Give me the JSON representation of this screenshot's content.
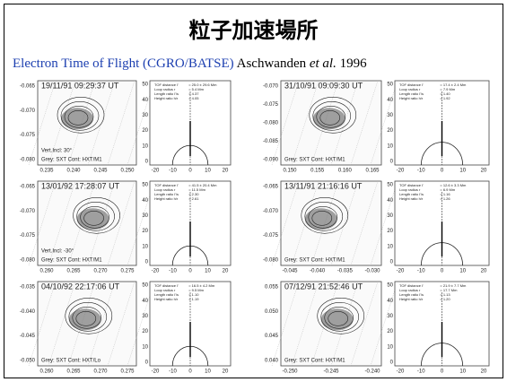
{
  "title": "粒子加速場所",
  "subtitle": {
    "source": "Electron Time of Flight (CGRO/BATSE)",
    "author": "Aschwanden",
    "etal": "et al.",
    "year": "1996"
  },
  "profile_axis": {
    "yticks": [
      "50",
      "40",
      "30",
      "20",
      "10",
      "0"
    ],
    "xticks": [
      "-20",
      "-10",
      "0",
      "10",
      "20"
    ]
  },
  "tof_labels": [
    "TOF distance l'",
    "Loop radius r",
    "Length ratio l'/s",
    "Height ratio h/r"
  ],
  "panels": [
    {
      "date": "19/11/91  09:29:37 UT",
      "yticks": [
        "-0.065",
        "-0.070",
        "-0.075",
        "-0.080"
      ],
      "xticks": [
        "0.235",
        "0.240",
        "0.245",
        "0.250"
      ],
      "notes": [
        "Vert.Incl: 30°"
      ],
      "legend": "Grey: SXT  Cont: HXT/M1",
      "tof_values": [
        "= 25.0 ± 29.6 Mm",
        "= 5.4 Mm",
        "= 4.37",
        "= 4.05"
      ]
    },
    {
      "date": "31/10/91  09:09:30 UT",
      "yticks": [
        "-0.070",
        "-0.075",
        "-0.080",
        "-0.085",
        "-0.090"
      ],
      "xticks": [
        "0.150",
        "0.155",
        "0.160",
        "0.165"
      ],
      "notes": [],
      "legend": "Grey: SXT  Cont: HXT/M1",
      "tof_values": [
        "= 17.4 ± 2.4 Mm",
        "= 7.9 Mm",
        "= 1.40",
        "= 1.92"
      ]
    },
    {
      "date": "13/01/92  17:28:07 UT",
      "yticks": [
        "-0.065",
        "-0.070",
        "-0.075",
        "-0.080"
      ],
      "xticks": [
        "0.260",
        "0.265",
        "0.270",
        "0.275"
      ],
      "notes": [
        "Vert.Incl: -30°"
      ],
      "legend": "Grey: SXT  Cont: HXT/M1",
      "tof_values": [
        "= 41.5 ± 20.4 Mm",
        "= 11.5 Mm",
        "= 2.30",
        "= 2.61"
      ]
    },
    {
      "date": "13/11/91  21:16:16 UT",
      "yticks": [
        "-0.065",
        "-0.070",
        "-0.075",
        "-0.080"
      ],
      "xticks": [
        "-0.045",
        "-0.040",
        "-0.035",
        "-0.030"
      ],
      "notes": [],
      "legend": "Grey: SXT  Cont: HXT/M1",
      "tof_values": [
        "= 12.6 ± 3.3 Mm",
        "= 6.9 Mm",
        "= 1.16",
        "= 1.26"
      ]
    },
    {
      "date": "04/10/92  22:17:06 UT",
      "yticks": [
        "-0.035",
        "-0.040",
        "-0.045",
        "-0.050"
      ],
      "xticks": [
        "0.260",
        "0.265",
        "0.270",
        "0.275"
      ],
      "notes": [],
      "legend": "Grey: SXT  Cont: HXT/Lo",
      "tof_values": [
        "= 16.5 ± 4.2 Mm",
        "= 9.5 Mm",
        "= 1.10",
        "= 1.19"
      ]
    },
    {
      "date": "07/12/91  21:52:46 UT",
      "yticks": [
        "0.055",
        "0.050",
        "0.045",
        "0.040"
      ],
      "xticks": [
        "-0.250",
        "-0.245",
        "-0.240"
      ],
      "notes": [],
      "legend": "Grey: SXT  Cont: HXT/M1",
      "tof_values": [
        "= 21.9 ± 7.7 Mm",
        "= 17.7 Mm",
        "= 1.13",
        "= 1.20"
      ]
    }
  ]
}
